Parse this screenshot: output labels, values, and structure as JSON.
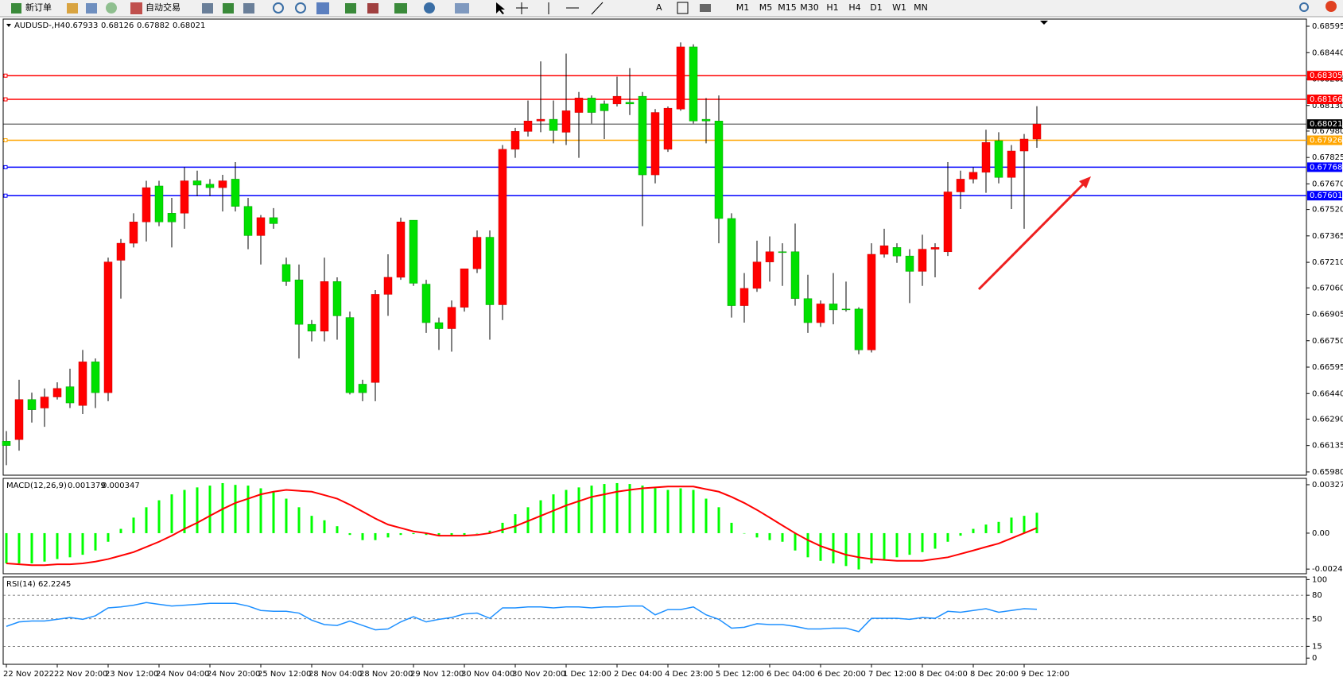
{
  "toolbar": {
    "buttons": [
      "新订单",
      "自动交易"
    ],
    "timeframes": [
      "M1",
      "M5",
      "M15",
      "M30",
      "H1",
      "H4",
      "D1",
      "W1",
      "MN"
    ]
  },
  "chart_data": [
    {
      "type": "candlestick",
      "symbol": "AUDUSD-,H4",
      "categories": [
        "22 Nov 2022",
        null,
        null,
        null,
        "22 Nov 20:00",
        null,
        null,
        null,
        "23 Nov 12:00",
        null,
        null,
        null,
        "24 Nov 04:00",
        null,
        null,
        null,
        "24 Nov 20:00",
        null,
        null,
        null,
        "25 Nov 12:00",
        null,
        null,
        null,
        "28 Nov 04:00",
        null,
        null,
        null,
        "28 Nov 20:00",
        null,
        null,
        null,
        "29 Nov 12:00",
        null,
        null,
        null,
        "30 Nov 04:00",
        null,
        null,
        null,
        "30 Nov 20:00",
        null,
        null,
        null,
        "1 Dec 12:00",
        null,
        null,
        null,
        "2 Dec 04:00",
        null,
        null,
        null,
        "4 Dec 23:00",
        null,
        null,
        null,
        "5 Dec 12:00",
        null,
        null,
        null,
        "6 Dec 04:00",
        null,
        null,
        null,
        "6 Dec 20:00",
        null,
        null,
        null,
        "7 Dec 12:00",
        null,
        null,
        null,
        "8 Dec 04:00",
        null,
        null,
        null,
        "8 Dec 20:00",
        null,
        null,
        null,
        "9 Dec 12:00",
        null
      ],
      "open": [
        0.6616,
        0.6617,
        0.66405,
        0.66355,
        0.6642,
        0.6648,
        0.6637,
        0.66626,
        0.66445,
        0.67222,
        0.67322,
        0.67447,
        0.67658,
        0.67498,
        0.67498,
        0.67688,
        0.67668,
        0.67648,
        0.67698,
        0.67538,
        0.67367,
        0.67472,
        0.67197,
        0.67107,
        0.66846,
        0.66806,
        0.67097,
        0.66886,
        0.66495,
        0.66505,
        0.67022,
        0.67122,
        0.67457,
        0.67082,
        0.66856,
        0.66821,
        0.66946,
        0.67172,
        0.67357,
        0.66961,
        0.67873,
        0.67978,
        0.68039,
        0.68049,
        0.67973,
        0.68089,
        0.68174,
        0.68139,
        0.68139,
        0.68149,
        0.68184,
        0.67723,
        0.67873,
        0.68109,
        0.68474,
        0.68049,
        0.68039,
        0.67467,
        0.66956,
        0.67057,
        0.67212,
        0.67272,
        0.67272,
        0.66997,
        0.66856,
        0.66966,
        0.66936,
        0.66936,
        0.66696,
        0.67257,
        0.67297,
        0.67247,
        0.67157,
        0.67287,
        0.67272,
        0.67623,
        0.67698,
        0.67738,
        0.67923,
        0.67708,
        0.67863,
        0.67933
      ],
      "high": [
        0.6622,
        0.66521,
        0.66445,
        0.6647,
        0.66506,
        0.66586,
        0.66696,
        0.66646,
        0.67237,
        0.67347,
        0.67498,
        0.67688,
        0.67688,
        0.67588,
        0.67768,
        0.67748,
        0.67698,
        0.67723,
        0.67798,
        0.67588,
        0.67487,
        0.67528,
        0.67237,
        0.67197,
        0.66871,
        0.67237,
        0.67122,
        0.66921,
        0.66521,
        0.67047,
        0.67257,
        0.67472,
        0.67457,
        0.67107,
        0.66886,
        0.66986,
        0.67172,
        0.67397,
        0.67397,
        0.67898,
        0.67999,
        0.68159,
        0.68389,
        0.68159,
        0.68434,
        0.68209,
        0.68189,
        0.68159,
        0.68299,
        0.68349,
        0.68209,
        0.68109,
        0.68124,
        0.685,
        0.68489,
        0.68174,
        0.68189,
        0.67498,
        0.67147,
        0.67337,
        0.67362,
        0.67322,
        0.67437,
        0.67137,
        0.66986,
        0.67147,
        0.67097,
        0.66946,
        0.67322,
        0.67407,
        0.67322,
        0.67287,
        0.67372,
        0.67322,
        0.67798,
        0.67748,
        0.67768,
        0.67988,
        0.67973,
        0.67898,
        0.67963,
        0.68126
      ],
      "low": [
        0.6602,
        0.66105,
        0.6627,
        0.66245,
        0.66405,
        0.66355,
        0.6632,
        0.66355,
        0.66395,
        0.66997,
        0.67297,
        0.67332,
        0.67422,
        0.67297,
        0.67407,
        0.67598,
        0.67598,
        0.67508,
        0.67508,
        0.67287,
        0.67197,
        0.67407,
        0.67072,
        0.66646,
        0.66746,
        0.66746,
        0.66756,
        0.66435,
        0.66395,
        0.66395,
        0.66896,
        0.67107,
        0.67072,
        0.66796,
        0.66696,
        0.66686,
        0.66921,
        0.67147,
        0.66756,
        0.66871,
        0.67823,
        0.67948,
        0.67973,
        0.67908,
        0.67898,
        0.67823,
        0.68024,
        0.67933,
        0.68124,
        0.68074,
        0.67422,
        0.67673,
        0.67858,
        0.68099,
        0.68024,
        0.67908,
        0.67322,
        0.66886,
        0.66856,
        0.67037,
        0.67097,
        0.67072,
        0.66956,
        0.66796,
        0.66831,
        0.66846,
        0.66921,
        0.66671,
        0.66681,
        0.67237,
        0.67207,
        0.66971,
        0.67072,
        0.67122,
        0.67247,
        0.67523,
        0.67673,
        0.67618,
        0.67673,
        0.67523,
        0.67407,
        0.67882
      ],
      "close": [
        0.66135,
        0.66405,
        0.66345,
        0.6642,
        0.6647,
        0.66385,
        0.66626,
        0.66445,
        0.67212,
        0.67322,
        0.67447,
        0.67648,
        0.67447,
        0.67447,
        0.67688,
        0.67663,
        0.67648,
        0.67688,
        0.67538,
        0.67367,
        0.67472,
        0.67437,
        0.67097,
        0.66846,
        0.66806,
        0.67097,
        0.66896,
        0.66445,
        0.66445,
        0.67022,
        0.67122,
        0.67447,
        0.67087,
        0.66856,
        0.66821,
        0.66946,
        0.67172,
        0.67357,
        0.66961,
        0.67873,
        0.67978,
        0.68039,
        0.68049,
        0.67983,
        0.68099,
        0.68174,
        0.68089,
        0.68099,
        0.68184,
        0.68139,
        0.67723,
        0.68089,
        0.68114,
        0.68474,
        0.68039,
        0.68039,
        0.67467,
        0.66956,
        0.67057,
        0.67212,
        0.67272,
        0.67267,
        0.66997,
        0.66856,
        0.66966,
        0.66931,
        0.66936,
        0.66696,
        0.67257,
        0.67307,
        0.67247,
        0.67157,
        0.67287,
        0.67297,
        0.67623,
        0.67698,
        0.67738,
        0.67913,
        0.67708,
        0.67863,
        0.67933,
        0.68021
      ],
      "up_color": "#ff0000",
      "down_color": "#00e000",
      "wick_color": "#000000",
      "current_color": "#000000",
      "ylim": [
        0.65961,
        0.68637
      ],
      "yticks": [
        0.68595,
        {
          "value": 0.6844,
          "label": "0.68440"
        },
        0.68285,
        {
          "value": 0.6813,
          "label": "0.68130"
        },
        {
          "value": 0.6798,
          "label": "0.67980"
        },
        0.67825,
        {
          "value": 0.6767,
          "label": "0.67670"
        },
        {
          "value": 0.6752,
          "label": "0.67520"
        },
        0.67365,
        {
          "value": 0.6721,
          "label": "0.67210"
        },
        {
          "value": 0.6706,
          "label": "0.67060"
        },
        0.66905,
        {
          "value": 0.6675,
          "label": "0.66750"
        },
        0.66595,
        {
          "value": 0.6644,
          "label": "0.66440"
        },
        {
          "value": 0.6629,
          "label": "0.66290"
        },
        0.66135,
        {
          "value": 0.6598,
          "label": "0.65980"
        }
      ],
      "levels": [
        {
          "value": 0.68305,
          "color": "#ff0000"
        },
        {
          "value": 0.68166,
          "color": "#ff0000"
        },
        {
          "value": 0.67926,
          "color": "#ffa500"
        },
        {
          "value": 0.67768,
          "color": "#0000ff"
        },
        {
          "value": 0.67601,
          "color": "#0000ff"
        }
      ]
    },
    {
      "type": "macd",
      "title": "MACD(12,26,9)",
      "histogram_color": "#00ff00",
      "signal_color": "#ff0000",
      "histogram": [
        -0.00204,
        -0.00204,
        -0.00204,
        -0.00192,
        -0.00175,
        -0.00163,
        -0.00146,
        -0.00117,
        -0.00058,
        0.00029,
        0.00105,
        0.00175,
        0.00222,
        0.00262,
        0.00292,
        0.00309,
        0.00321,
        0.00338,
        0.00326,
        0.00321,
        0.00303,
        0.0028,
        0.00233,
        0.00175,
        0.00117,
        0.00087,
        0.00047,
        -0.00012,
        -0.00047,
        -0.00047,
        -0.00029,
        -0.00012,
        -6e-05,
        -0.00012,
        -0.00017,
        -0.00017,
        -0.00012,
        0,
        0.00017,
        0.0007,
        0.00128,
        0.00175,
        0.00222,
        0.00262,
        0.00292,
        0.00309,
        0.00321,
        0.00332,
        0.00338,
        0.00332,
        0.00321,
        0.00303,
        0.00292,
        0.00303,
        0.00292,
        0.00233,
        0.00175,
        0.0007,
        0,
        -0.00029,
        -0.00047,
        -0.00058,
        -0.00117,
        -0.00163,
        -0.00187,
        -0.00204,
        -0.00222,
        -0.00245,
        -0.00204,
        -0.00175,
        -0.00163,
        -0.00146,
        -0.00128,
        -0.00105,
        -0.00058,
        -0.00017,
        0.00029,
        0.00058,
        0.00076,
        0.00105,
        0.00117,
        0.001379
      ],
      "signal": [
        -0.00204,
        -0.0021,
        -0.00216,
        -0.00216,
        -0.0021,
        -0.0021,
        -0.00204,
        -0.00192,
        -0.00175,
        -0.00152,
        -0.00128,
        -0.00093,
        -0.00058,
        -0.00017,
        0.00029,
        0.0007,
        0.00117,
        0.00163,
        0.00204,
        0.00233,
        0.00262,
        0.0028,
        0.00292,
        0.00286,
        0.0028,
        0.00257,
        0.00233,
        0.00192,
        0.00146,
        0.00099,
        0.00058,
        0.00035,
        0.00012,
        0,
        -0.00017,
        -0.00017,
        -0.00017,
        -0.00012,
        0,
        0.00023,
        0.00047,
        0.00082,
        0.00117,
        0.00152,
        0.00187,
        0.00216,
        0.00245,
        0.00262,
        0.0028,
        0.00292,
        0.00303,
        0.00309,
        0.00315,
        0.00315,
        0.00315,
        0.00297,
        0.0028,
        0.00245,
        0.00204,
        0.00157,
        0.00105,
        0.00052,
        0,
        -0.00047,
        -0.00087,
        -0.00117,
        -0.00146,
        -0.00163,
        -0.00175,
        -0.00181,
        -0.00187,
        -0.00187,
        -0.00187,
        -0.00175,
        -0.00163,
        -0.0014,
        -0.00117,
        -0.00093,
        -0.0007,
        -0.00035,
        0,
        0.000347
      ],
      "ylim": [
        -0.00274,
        0.0037
      ],
      "yticks": [
        0.003272,
        {
          "value": 0,
          "label": "0.00"
        },
        -0.002427
      ]
    },
    {
      "type": "rsi",
      "title": "RSI(14)",
      "color": "#1e90ff",
      "values": [
        40.4,
        46.1,
        47.2,
        47.2,
        49.4,
        51.7,
        49.4,
        53.9,
        64.0,
        65.2,
        67.4,
        70.8,
        68.5,
        66.3,
        67.4,
        68.5,
        69.7,
        69.7,
        69.7,
        66.3,
        60.7,
        59.6,
        59.6,
        57.3,
        48.3,
        42.7,
        41.6,
        47.2,
        41.6,
        36.0,
        37.1,
        46.1,
        52.8,
        46.1,
        49.4,
        51.7,
        56.2,
        57.3,
        50.6,
        64.0,
        64.0,
        65.2,
        65.2,
        64.0,
        65.2,
        65.2,
        64.0,
        65.2,
        65.2,
        66.3,
        66.3,
        55.1,
        61.8,
        61.8,
        65.2,
        55.1,
        49.4,
        38.2,
        39.3,
        43.8,
        42.7,
        42.7,
        40.4,
        37.1,
        37.1,
        38.2,
        38.2,
        33.7,
        50.6,
        50.6,
        50.6,
        49.4,
        51.7,
        50.6,
        59.6,
        58.4,
        60.7,
        62.9,
        58.4,
        60.7,
        62.9,
        62.2245
      ],
      "ylim": [
        -7.9,
        103.4
      ],
      "yticks": [
        100,
        80,
        50,
        15,
        0
      ],
      "levels": [
        80,
        50,
        15
      ]
    }
  ]
}
